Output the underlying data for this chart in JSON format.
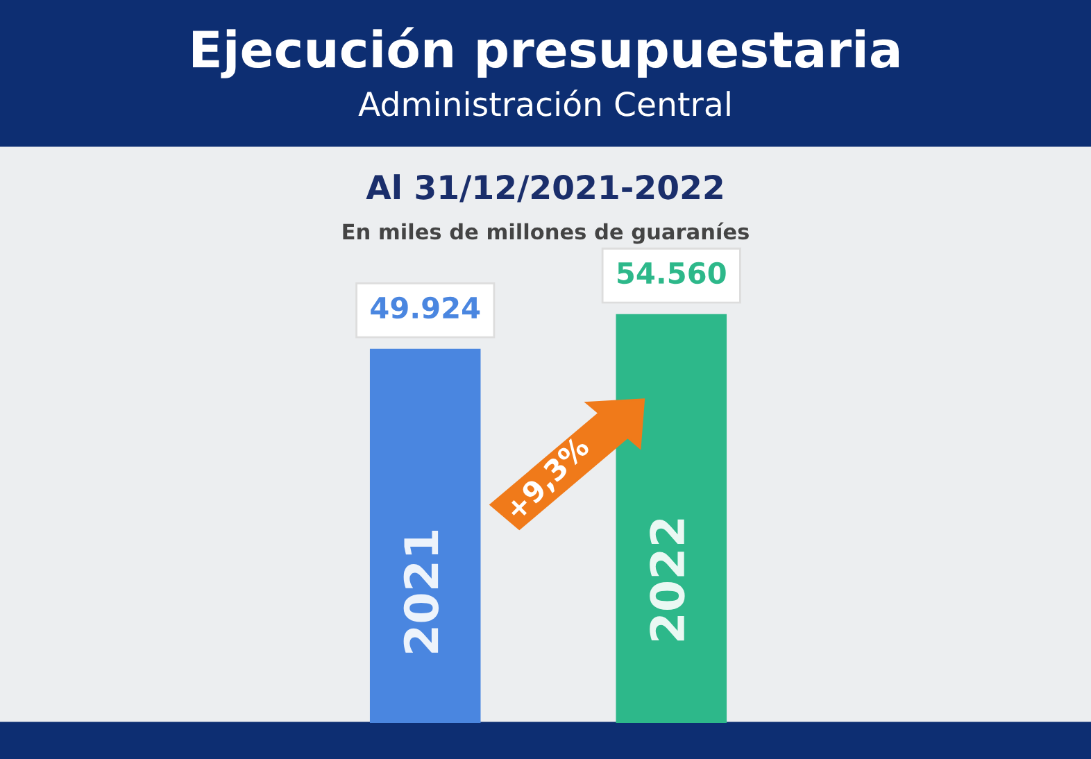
{
  "chart_data": {
    "type": "bar",
    "title": "Ejecución presupuestaria",
    "subtitle": "Administración Central",
    "annotations": [
      "Al 31/12/2021-2022",
      "En miles de millones de guaraníes",
      "+9,3%"
    ],
    "categories": [
      "2021",
      "2022"
    ],
    "values": [
      49924,
      54560
    ],
    "colors": [
      "#4a86e0",
      "#2db88a"
    ],
    "value_labels": [
      "49.924",
      "54.560"
    ]
  }
}
